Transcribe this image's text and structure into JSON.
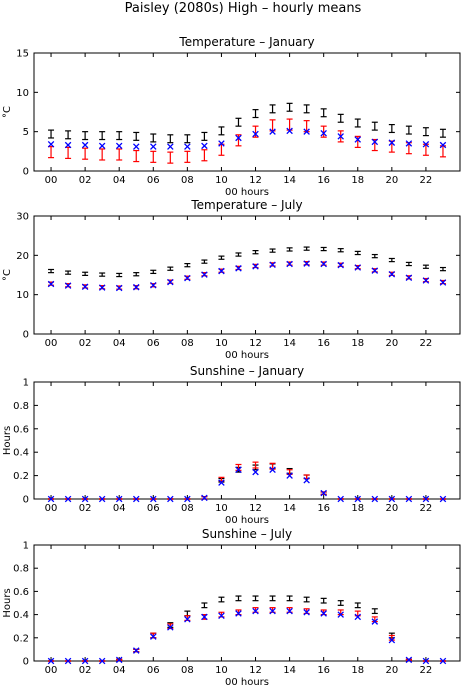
{
  "figure": {
    "suptitle": "Paisley (2080s) High – hourly means"
  },
  "chart_data": [
    {
      "type": "scatter",
      "title": "Temperature – January",
      "xlabel": "00 hours",
      "ylabel": "°C",
      "xlim": [
        -1,
        24
      ],
      "ylim": [
        0,
        15
      ],
      "yticks": [
        0,
        5,
        10,
        15
      ],
      "xticks": [
        0,
        2,
        4,
        6,
        8,
        10,
        12,
        14,
        16,
        18,
        20,
        22
      ],
      "xtick_labels": [
        "00",
        "02",
        "04",
        "06",
        "08",
        "10",
        "12",
        "14",
        "16",
        "18",
        "20",
        "22"
      ],
      "x": [
        0,
        1,
        2,
        3,
        4,
        5,
        6,
        7,
        8,
        9,
        10,
        11,
        12,
        13,
        14,
        15,
        16,
        17,
        18,
        19,
        20,
        21,
        22,
        23
      ],
      "series": [
        {
          "color": "#000000",
          "marker": "errorbar",
          "values": [
            4.7,
            4.6,
            4.5,
            4.5,
            4.5,
            4.4,
            4.2,
            4.1,
            4.1,
            4.4,
            5.1,
            6.2,
            7.3,
            7.9,
            8.1,
            7.9,
            7.4,
            6.7,
            6.1,
            5.7,
            5.4,
            5.2,
            5.0,
            4.8
          ],
          "err": [
            0.5,
            0.5,
            0.5,
            0.5,
            0.5,
            0.5,
            0.5,
            0.5,
            0.5,
            0.5,
            0.5,
            0.5,
            0.5,
            0.5,
            0.5,
            0.5,
            0.5,
            0.5,
            0.5,
            0.5,
            0.5,
            0.5,
            0.5,
            0.5
          ]
        },
        {
          "color": "#ff0000",
          "marker": "errorbar",
          "values": [
            2.4,
            2.3,
            2.2,
            2.1,
            2.1,
            1.9,
            1.8,
            1.7,
            1.8,
            2.0,
            2.7,
            3.9,
            5.0,
            5.8,
            5.9,
            5.7,
            5.0,
            4.4,
            3.7,
            3.3,
            3.1,
            2.9,
            2.7,
            2.5
          ],
          "err": [
            0.7,
            0.7,
            0.7,
            0.7,
            0.7,
            0.7,
            0.7,
            0.7,
            0.7,
            0.7,
            0.7,
            0.7,
            0.7,
            0.7,
            0.7,
            0.7,
            0.7,
            0.7,
            0.7,
            0.7,
            0.7,
            0.7,
            0.7,
            0.7
          ]
        },
        {
          "color": "#0000ff",
          "marker": "x",
          "values": [
            3.4,
            3.3,
            3.3,
            3.2,
            3.2,
            3.1,
            3.1,
            3.1,
            3.1,
            3.2,
            3.5,
            4.2,
            4.7,
            5.0,
            5.1,
            5.0,
            4.8,
            4.4,
            4.0,
            3.7,
            3.6,
            3.5,
            3.4,
            3.3
          ]
        }
      ]
    },
    {
      "type": "scatter",
      "title": "Temperature – July",
      "xlabel": "00 hours",
      "ylabel": "°C",
      "xlim": [
        -1,
        24
      ],
      "ylim": [
        0,
        30
      ],
      "yticks": [
        0,
        10,
        20,
        30
      ],
      "xticks": [
        0,
        2,
        4,
        6,
        8,
        10,
        12,
        14,
        16,
        18,
        20,
        22
      ],
      "xtick_labels": [
        "00",
        "02",
        "04",
        "06",
        "08",
        "10",
        "12",
        "14",
        "16",
        "18",
        "20",
        "22"
      ],
      "x": [
        0,
        1,
        2,
        3,
        4,
        5,
        6,
        7,
        8,
        9,
        10,
        11,
        12,
        13,
        14,
        15,
        16,
        17,
        18,
        19,
        20,
        21,
        22,
        23
      ],
      "series": [
        {
          "color": "#000000",
          "marker": "errorbar",
          "values": [
            16.0,
            15.6,
            15.3,
            15.1,
            15.0,
            15.2,
            15.8,
            16.6,
            17.5,
            18.4,
            19.4,
            20.2,
            20.8,
            21.2,
            21.5,
            21.7,
            21.6,
            21.3,
            20.6,
            19.8,
            18.8,
            17.8,
            17.1,
            16.5
          ],
          "err": [
            0.4,
            0.4,
            0.4,
            0.4,
            0.4,
            0.4,
            0.4,
            0.4,
            0.4,
            0.4,
            0.4,
            0.4,
            0.4,
            0.4,
            0.4,
            0.4,
            0.4,
            0.4,
            0.4,
            0.4,
            0.4,
            0.4,
            0.4,
            0.4
          ]
        },
        {
          "color": "#ff0000",
          "marker": "errorbar",
          "values": [
            12.8,
            12.4,
            12.1,
            11.9,
            11.8,
            11.9,
            12.4,
            13.3,
            14.3,
            15.2,
            16.1,
            16.8,
            17.3,
            17.7,
            17.9,
            18.0,
            17.9,
            17.6,
            17.0,
            16.2,
            15.3,
            14.4,
            13.7,
            13.2
          ],
          "err": [
            0.4,
            0.4,
            0.4,
            0.4,
            0.4,
            0.4,
            0.4,
            0.4,
            0.4,
            0.4,
            0.4,
            0.4,
            0.4,
            0.4,
            0.4,
            0.4,
            0.4,
            0.4,
            0.4,
            0.4,
            0.4,
            0.4,
            0.4,
            0.4
          ]
        },
        {
          "color": "#0000ff",
          "marker": "x",
          "values": [
            12.7,
            12.3,
            12.0,
            11.8,
            11.7,
            11.9,
            12.4,
            13.2,
            14.2,
            15.1,
            16.0,
            16.7,
            17.2,
            17.6,
            17.8,
            17.9,
            17.8,
            17.5,
            16.9,
            16.1,
            15.2,
            14.3,
            13.6,
            13.1
          ]
        }
      ]
    },
    {
      "type": "scatter",
      "title": "Sunshine – January",
      "xlabel": "00 hours",
      "ylabel": "Hours",
      "xlim": [
        -1,
        24
      ],
      "ylim": [
        0,
        1
      ],
      "yticks": [
        0,
        0.2,
        0.4,
        0.6,
        0.8,
        1
      ],
      "xticks": [
        0,
        2,
        4,
        6,
        8,
        10,
        12,
        14,
        16,
        18,
        20,
        22
      ],
      "xtick_labels": [
        "00",
        "02",
        "04",
        "06",
        "08",
        "10",
        "12",
        "14",
        "16",
        "18",
        "20",
        "22"
      ],
      "x": [
        0,
        1,
        2,
        3,
        4,
        5,
        6,
        7,
        8,
        9,
        10,
        11,
        12,
        13,
        14,
        15,
        16,
        17,
        18,
        19,
        20,
        21,
        22,
        23
      ],
      "series": [
        {
          "color": "#000000",
          "marker": "errorbar",
          "values": [
            0,
            0,
            0,
            0,
            0,
            0,
            0,
            0,
            0,
            0.01,
            0.16,
            0.25,
            0.27,
            0.28,
            0.24,
            0.19,
            0.05,
            0,
            0,
            0,
            0,
            0,
            0,
            0
          ],
          "err": [
            0,
            0,
            0,
            0,
            0,
            0,
            0,
            0,
            0,
            0.01,
            0.015,
            0.02,
            0.02,
            0.02,
            0.02,
            0.015,
            0.01,
            0,
            0,
            0,
            0,
            0,
            0,
            0
          ]
        },
        {
          "color": "#ff0000",
          "marker": "errorbar",
          "values": [
            0,
            0,
            0,
            0,
            0,
            0,
            0,
            0,
            0,
            0.01,
            0.17,
            0.27,
            0.29,
            0.28,
            0.23,
            0.19,
            0.05,
            0,
            0,
            0,
            0,
            0,
            0,
            0
          ],
          "err": [
            0,
            0,
            0,
            0,
            0,
            0,
            0,
            0,
            0,
            0.01,
            0.015,
            0.025,
            0.025,
            0.025,
            0.02,
            0.015,
            0.01,
            0,
            0,
            0,
            0,
            0,
            0,
            0
          ]
        },
        {
          "color": "#0000ff",
          "marker": "x",
          "values": [
            0,
            0,
            0,
            0,
            0,
            0,
            0,
            0,
            0,
            0.01,
            0.14,
            0.25,
            0.23,
            0.25,
            0.2,
            0.16,
            0.05,
            0,
            0,
            0,
            0,
            0,
            0,
            0
          ]
        }
      ]
    },
    {
      "type": "scatter",
      "title": "Sunshine – July",
      "xlabel": "00 hours",
      "ylabel": "Hours",
      "xlim": [
        -1,
        24
      ],
      "ylim": [
        0,
        1
      ],
      "yticks": [
        0,
        0.2,
        0.4,
        0.6,
        0.8,
        1
      ],
      "xticks": [
        0,
        2,
        4,
        6,
        8,
        10,
        12,
        14,
        16,
        18,
        20,
        22
      ],
      "xtick_labels": [
        "00",
        "02",
        "04",
        "06",
        "08",
        "10",
        "12",
        "14",
        "16",
        "18",
        "20",
        "22"
      ],
      "x": [
        0,
        1,
        2,
        3,
        4,
        5,
        6,
        7,
        8,
        9,
        10,
        11,
        12,
        13,
        14,
        15,
        16,
        17,
        18,
        19,
        20,
        21,
        22,
        23
      ],
      "series": [
        {
          "color": "#000000",
          "marker": "errorbar",
          "values": [
            0,
            0,
            0,
            0,
            0.01,
            0.09,
            0.22,
            0.31,
            0.41,
            0.48,
            0.53,
            0.54,
            0.54,
            0.54,
            0.54,
            0.53,
            0.52,
            0.5,
            0.48,
            0.43,
            0.22,
            0.01,
            0,
            0
          ],
          "err": [
            0,
            0,
            0,
            0,
            0.005,
            0.01,
            0.02,
            0.02,
            0.02,
            0.02,
            0.02,
            0.02,
            0.02,
            0.02,
            0.02,
            0.02,
            0.02,
            0.02,
            0.02,
            0.02,
            0.02,
            0.005,
            0,
            0
          ]
        },
        {
          "color": "#ff0000",
          "marker": "errorbar",
          "values": [
            0,
            0,
            0,
            0,
            0.01,
            0.09,
            0.22,
            0.3,
            0.37,
            0.38,
            0.4,
            0.42,
            0.44,
            0.44,
            0.44,
            0.43,
            0.42,
            0.42,
            0.41,
            0.36,
            0.2,
            0.01,
            0,
            0
          ],
          "err": [
            0,
            0,
            0,
            0,
            0.005,
            0.01,
            0.02,
            0.02,
            0.02,
            0.02,
            0.02,
            0.02,
            0.02,
            0.02,
            0.02,
            0.02,
            0.02,
            0.02,
            0.02,
            0.02,
            0.02,
            0.005,
            0,
            0
          ]
        },
        {
          "color": "#0000ff",
          "marker": "x",
          "values": [
            0,
            0,
            0,
            0,
            0.01,
            0.09,
            0.21,
            0.29,
            0.36,
            0.38,
            0.39,
            0.41,
            0.43,
            0.43,
            0.43,
            0.42,
            0.41,
            0.4,
            0.38,
            0.34,
            0.18,
            0.01,
            0,
            0
          ]
        }
      ]
    }
  ]
}
